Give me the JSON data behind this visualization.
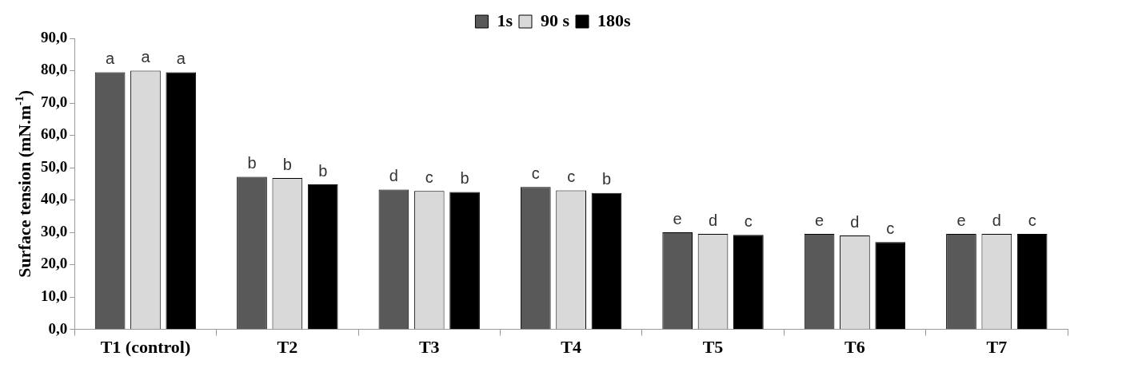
{
  "chart_data": {
    "type": "bar",
    "ylabel": "Surface tension (mN.m$^{-1}$)",
    "categories": [
      "T1 (control)",
      "T2",
      "T3",
      "T4",
      "T5",
      "T6",
      "T7"
    ],
    "series": [
      {
        "name": "1s",
        "color": "#595959",
        "values": [
          79.5,
          47.2,
          43.2,
          44.0,
          30.0,
          29.5,
          29.5
        ],
        "value_labels": [
          "a",
          "b",
          "d",
          "c",
          "e",
          "e",
          "e"
        ]
      },
      {
        "name": "90 s",
        "color": "#d9d9d9",
        "values": [
          80.0,
          46.8,
          42.8,
          43.0,
          29.5,
          29.0,
          29.5
        ],
        "value_labels": [
          "a",
          "b",
          "c",
          "c",
          "d",
          "d",
          "d"
        ]
      },
      {
        "name": "180s",
        "color": "#000000",
        "values": [
          79.5,
          44.8,
          42.5,
          42.2,
          29.2,
          27.0,
          29.5
        ],
        "value_labels": [
          "a",
          "b",
          "b",
          "b",
          "c",
          "c",
          "c"
        ]
      }
    ],
    "ylim": [
      0,
      90
    ],
    "yticks": [
      {
        "value": 0,
        "label": "0,0"
      },
      {
        "value": 10,
        "label": "10,0"
      },
      {
        "value": 20,
        "label": "20,0"
      },
      {
        "value": 30,
        "label": "30,0"
      },
      {
        "value": 40,
        "label": "40,0"
      },
      {
        "value": 50,
        "label": "50,0"
      },
      {
        "value": 60,
        "label": "60,0"
      },
      {
        "value": 70,
        "label": "70,0"
      },
      {
        "value": 80,
        "label": "80,0"
      },
      {
        "value": 90,
        "label": "90,0"
      }
    ],
    "grid": false,
    "legend": "top"
  }
}
